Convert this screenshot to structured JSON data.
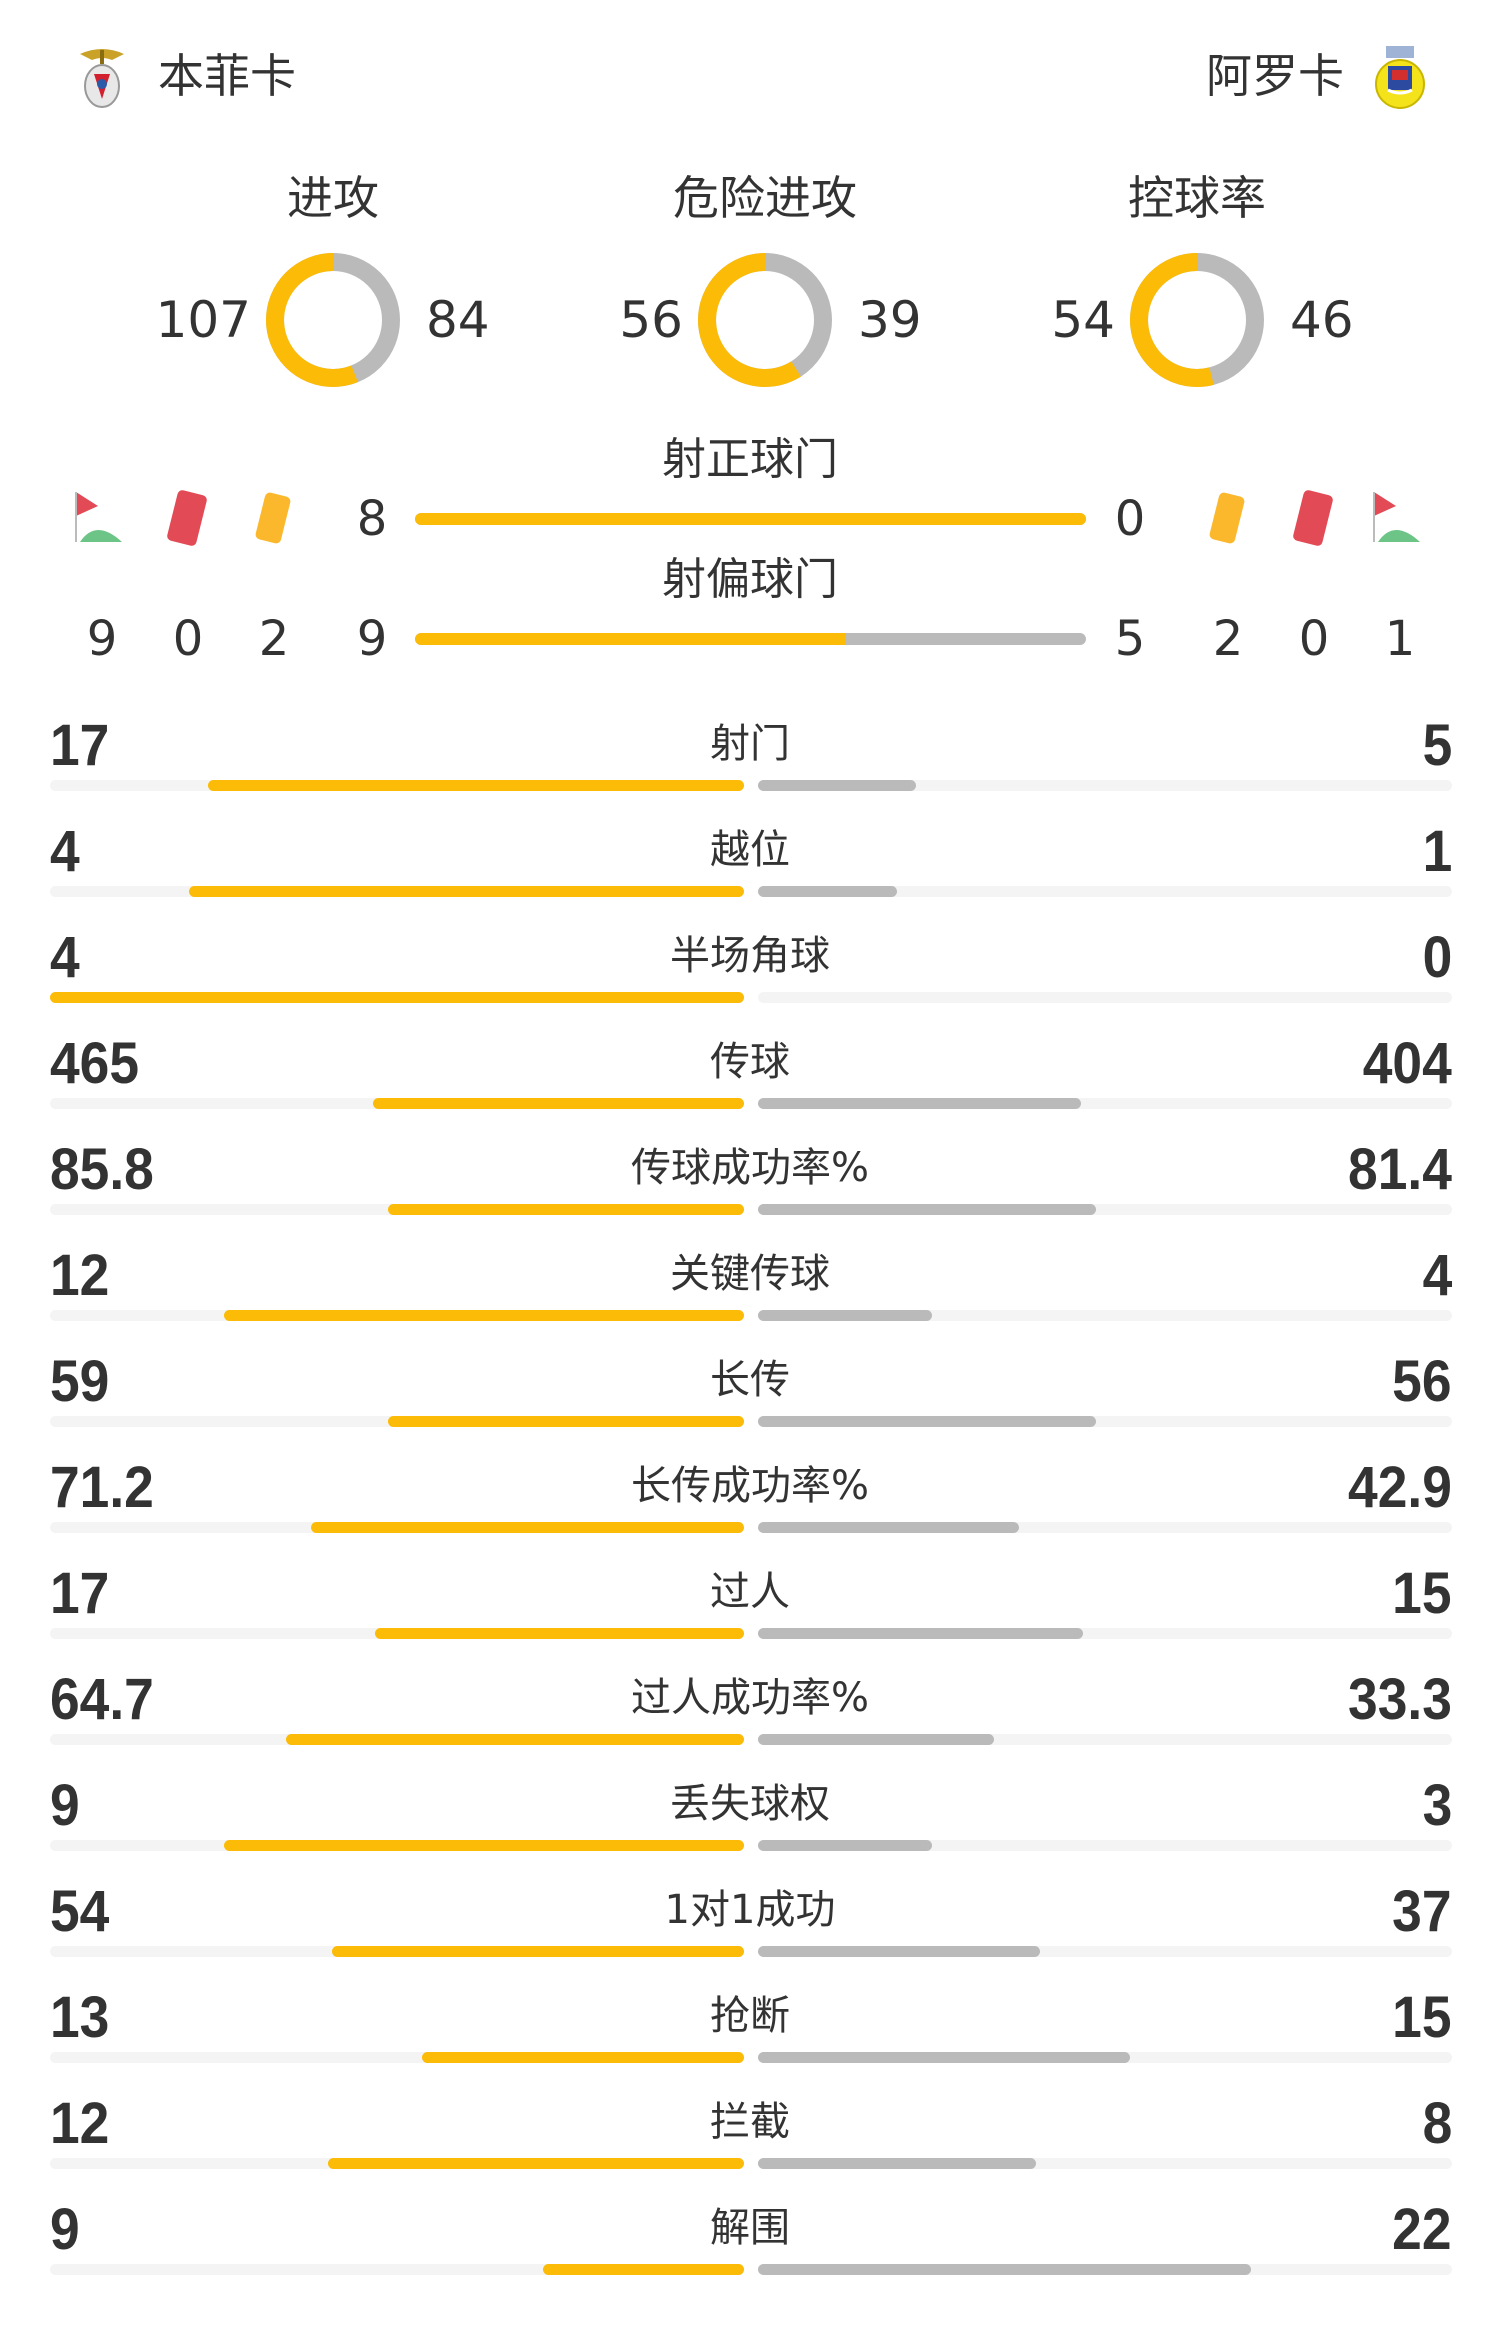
{
  "home": {
    "name": "本菲卡",
    "logo": "benfica-crest"
  },
  "away": {
    "name": "阿罗卡",
    "logo": "arouca-crest"
  },
  "colors": {
    "home": "#fbbb06",
    "away": "#bababa",
    "track": "#f4f4f4"
  },
  "donuts": [
    {
      "title": "进攻",
      "home": 107,
      "away": 84
    },
    {
      "title": "危险进攻",
      "home": 56,
      "away": 39
    },
    {
      "title": "控球率",
      "home": 54,
      "away": 46
    }
  ],
  "shots_on_target": {
    "title": "射正球门",
    "home": 8,
    "away": 0
  },
  "shots_off_target": {
    "title": "射偏球门",
    "home": 9,
    "away": 5
  },
  "home_events": {
    "corners": 9,
    "red_cards": 0,
    "yellow_cards": 2
  },
  "away_events": {
    "yellow_cards": 2,
    "red_cards": 0,
    "corners": 1
  },
  "stats": [
    {
      "label": "射门",
      "home": "17",
      "away": "5"
    },
    {
      "label": "越位",
      "home": "4",
      "away": "1"
    },
    {
      "label": "半场角球",
      "home": "4",
      "away": "0"
    },
    {
      "label": "传球",
      "home": "465",
      "away": "404"
    },
    {
      "label": "传球成功率%",
      "home": "85.8",
      "away": "81.4"
    },
    {
      "label": "关键传球",
      "home": "12",
      "away": "4"
    },
    {
      "label": "长传",
      "home": "59",
      "away": "56"
    },
    {
      "label": "长传成功率%",
      "home": "71.2",
      "away": "42.9"
    },
    {
      "label": "过人",
      "home": "17",
      "away": "15"
    },
    {
      "label": "过人成功率%",
      "home": "64.7",
      "away": "33.3"
    },
    {
      "label": "丢失球权",
      "home": "9",
      "away": "3"
    },
    {
      "label": "1对1成功",
      "home": "54",
      "away": "37"
    },
    {
      "label": "抢断",
      "home": "13",
      "away": "15"
    },
    {
      "label": "拦截",
      "home": "12",
      "away": "8"
    },
    {
      "label": "解围",
      "home": "9",
      "away": "22"
    }
  ]
}
